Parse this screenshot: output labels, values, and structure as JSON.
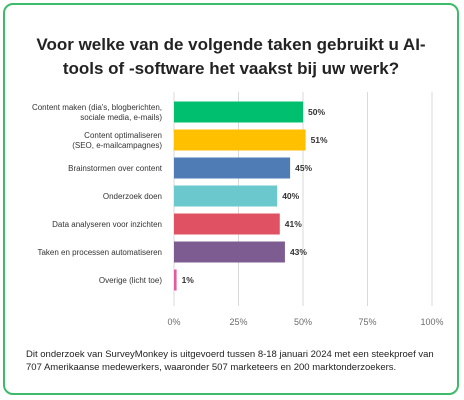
{
  "title": "Voor welke van de volgende taken gebruikt u AI-tools of -software het vaakst bij uw werk?",
  "footnote": "Dit onderzoek van SurveyMonkey is uitgevoerd tussen 8-18 januari 2024 met een steekproef van 707 Amerikaanse medewerkers, waaronder 507 marketeers en 200 marktonderzoekers.",
  "colors": {
    "border": "#3dbb6b",
    "grid": "#d9d9d9",
    "label": "#333333",
    "tick": "#6b6b6b"
  },
  "chart_data": {
    "type": "bar",
    "orientation": "horizontal",
    "categories": [
      [
        "Content maken (dia's, blogberichten,",
        "sociale media, e-mails)"
      ],
      [
        "Content optimaliseren",
        "(SEO, e-mailcampagnes)"
      ],
      [
        "Brainstormen over content"
      ],
      [
        "Onderzoek doen"
      ],
      [
        "Data analyseren voor inzichten"
      ],
      [
        "Taken en processen automatiseren"
      ],
      [
        "Overige (licht toe)"
      ]
    ],
    "values": [
      50,
      51,
      45,
      40,
      41,
      43,
      1
    ],
    "value_labels": [
      "50%",
      "51%",
      "45%",
      "40%",
      "41%",
      "43%",
      "1%"
    ],
    "bar_colors": [
      "#00bf6f",
      "#ffc000",
      "#507cb6",
      "#6bc8cd",
      "#e05263",
      "#7d5c91",
      "#e05c9b"
    ],
    "xlim": [
      0,
      100
    ],
    "x_ticks": [
      0,
      25,
      50,
      75,
      100
    ],
    "x_tick_labels": [
      "0%",
      "25%",
      "50%",
      "75%",
      "100%"
    ],
    "grid": true,
    "legend": "none"
  }
}
